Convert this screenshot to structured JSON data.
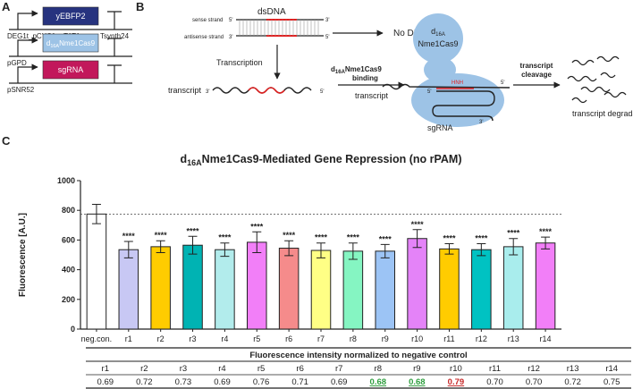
{
  "panel_labels": [
    "A",
    "B",
    "C"
  ],
  "panel_a": {
    "constructs": [
      {
        "promoter": "DEG1t_pCYC1noTATA",
        "gene": "yEBFP2",
        "terminator": "Tsynth24",
        "color": "#27337f",
        "text_color": "#ffffff"
      },
      {
        "promoter": "pGPD",
        "gene_parts": [
          "d",
          "16A",
          "Nme1Cas9"
        ],
        "color": "#9dc3e6",
        "text_color": "#ffffff"
      },
      {
        "promoter": "pSNR52",
        "gene": "sgRNA",
        "color": "#c2185b",
        "text_color": "#ffffff"
      }
    ]
  },
  "panel_b": {
    "sense_strand": "sense strand",
    "antisense_strand": "antisense strand",
    "dsdna": "dsDNA",
    "five_prime": "5'",
    "three_prime": "3'",
    "no_damage": "No DNA damage",
    "transcription": "Transcription",
    "transcript": "transcript",
    "binding_parts": [
      "d",
      "16A",
      "Nme1Cas9",
      "binding"
    ],
    "protein_parts": [
      "d",
      "16A",
      "Nme1Cas9"
    ],
    "hnh": "HNH",
    "sgrna": "sgRNA",
    "cleavage_lines": [
      "transcript",
      "cleavage"
    ],
    "degradation": "transcript degradation"
  },
  "chart_data": {
    "type": "bar",
    "title_parts": [
      "d",
      "16A",
      "Nme1Cas9-Mediated Gene Repression (no rPAM)"
    ],
    "y_label": "Fluorescence [A.U.]",
    "categories": [
      "neg.con.",
      "r1",
      "r2",
      "r3",
      "r4",
      "r5",
      "r6",
      "r7",
      "r8",
      "r9",
      "r10",
      "r11",
      "r12",
      "r13",
      "r14"
    ],
    "values": [
      775,
      535,
      555,
      565,
      535,
      585,
      545,
      530,
      525,
      525,
      610,
      540,
      535,
      555,
      580
    ],
    "errors": [
      65,
      55,
      40,
      60,
      45,
      70,
      50,
      50,
      55,
      45,
      60,
      35,
      40,
      55,
      40
    ],
    "colors": [
      "#ffffff",
      "#c8c8f4",
      "#ffcc00",
      "#00b3b3",
      "#b2ecec",
      "#f27ff8",
      "#f58b8b",
      "#ffff85",
      "#85f5c2",
      "#9cc4f5",
      "#e483f8",
      "#ffcc00",
      "#00c2c2",
      "#a9eded",
      "#f27ff8"
    ],
    "annotations": [
      null,
      "****",
      "****",
      "****",
      "****",
      "****",
      "****",
      "****",
      "****",
      "****",
      "****",
      "****",
      "****",
      "****",
      "****"
    ],
    "reference_line": 775,
    "ylim": [
      0,
      1000
    ],
    "yticks": [
      0,
      200,
      400,
      600,
      800,
      1000
    ]
  },
  "table": {
    "title": "Fluorescence intensity normalized to negative control",
    "header": [
      "r1",
      "r2",
      "r3",
      "r4",
      "r5",
      "r6",
      "r7",
      "r8",
      "r9",
      "r10",
      "r11",
      "r12",
      "r13",
      "r14"
    ],
    "rows": [
      [
        "0.69",
        "0.72",
        "0.73",
        "0.69",
        "0.76",
        "0.71",
        "0.69",
        "0.68",
        "0.68",
        "0.79",
        "0.70",
        "0.70",
        "0.72",
        "0.75"
      ]
    ],
    "highlight_colors": [
      null,
      null,
      null,
      null,
      null,
      null,
      null,
      "#2e9e3e",
      "#2e9e3e",
      "#c62828",
      null,
      null,
      null,
      null
    ]
  }
}
